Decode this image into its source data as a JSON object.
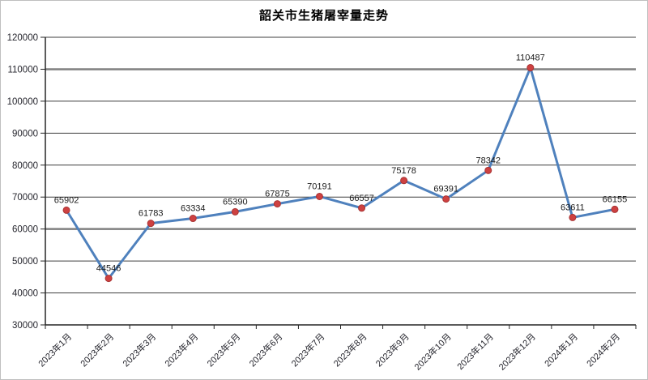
{
  "chart_data": {
    "type": "line",
    "title": "韶关市生猪屠宰量走势",
    "categories": [
      "2023年1月",
      "2023年2月",
      "2023年3月",
      "2023年4月",
      "2023年5月",
      "2023年6月",
      "2023年7月",
      "2023年8月",
      "2023年9月",
      "2023年10月",
      "2023年11月",
      "2023年12月",
      "2024年1月",
      "2024年2月"
    ],
    "values": [
      65902,
      44546,
      61783,
      63334,
      65390,
      67875,
      70191,
      66557,
      75178,
      69391,
      78342,
      110487,
      63611,
      66155
    ],
    "data_labels": true,
    "legend": "none",
    "grid": "horizontal",
    "xlabel": "",
    "ylabel": "",
    "ylim": [
      30000,
      120000
    ],
    "y_tick_step": 10000,
    "y_ticks": [
      30000,
      40000,
      50000,
      60000,
      70000,
      80000,
      90000,
      100000,
      110000,
      120000
    ],
    "emphasized_gridlines": [
      60000,
      110000
    ],
    "colors": {
      "line": "#4F81BD",
      "marker_fill": "#CE4141",
      "marker_border": "#A83434",
      "gridline": "#3f3f3f",
      "gridline_emphasis": "#808080",
      "axis": "#262626",
      "tick_label": "#26262e",
      "data_label": "#1a1a1a"
    }
  }
}
